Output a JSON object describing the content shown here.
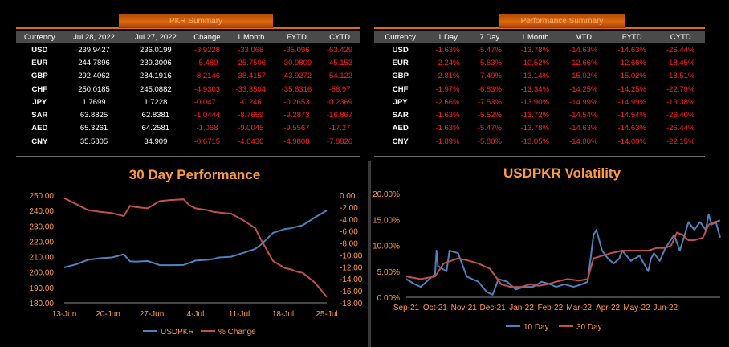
{
  "pkr_summary": {
    "title": "PKR Summary",
    "headers": [
      "Currency",
      "Jul 28, 2022",
      "Jul 27, 2022",
      "Change",
      "1 Month",
      "FYTD",
      "CYTD"
    ],
    "rows": [
      [
        "USD",
        "239.9427",
        "236.0199",
        "-3.9228",
        "-33.068",
        "-35.096",
        "-63.429"
      ],
      [
        "EUR",
        "244.7896",
        "239.3006",
        "-5.489",
        "-25.7506",
        "-30.9809",
        "-45.153"
      ],
      [
        "GBP",
        "292.4062",
        "284.1916",
        "-8.2146",
        "-38.4157",
        "-43.9272",
        "-54.122"
      ],
      [
        "CHF",
        "250.0185",
        "245.0882",
        "-4.9303",
        "-33.3504",
        "-35.6316",
        "-56.97"
      ],
      [
        "JPY",
        "1.7699",
        "1.7228",
        "-0.0471",
        "-0.246",
        "-0.2653",
        "-0.2369"
      ],
      [
        "SAR",
        "63.8825",
        "62.8381",
        "-1.0444",
        "-8.7659",
        "-9.2873",
        "-16.867"
      ],
      [
        "AED",
        "65.3261",
        "64.2581",
        "-1.068",
        "-9.0045",
        "-9.5567",
        "-17.27"
      ],
      [
        "CNY",
        "35.5805",
        "34.909",
        "-0.6715",
        "-4.6436",
        "-4.9808",
        "-7.8826"
      ]
    ]
  },
  "performance_summary": {
    "title": "Performance Summary",
    "headers": [
      "Currency",
      "1 Day",
      "7 Day",
      "1 Month",
      "MTD",
      "FYTD",
      "CYTD"
    ],
    "rows": [
      [
        "USD",
        "-1.63%",
        "-5.47%",
        "-13.78%",
        "-14.63%",
        "-14.63%",
        "-26.44%"
      ],
      [
        "EUR",
        "-2.24%",
        "-5.63%",
        "-10.52%",
        "-12.66%",
        "-12.66%",
        "-18.45%"
      ],
      [
        "GBP",
        "-2.81%",
        "-7.49%",
        "-13.14%",
        "-15.02%",
        "-15.02%",
        "-18.51%"
      ],
      [
        "CHF",
        "-1.97%",
        "-6.83%",
        "-13.34%",
        "-14.25%",
        "-14.25%",
        "-22.79%"
      ],
      [
        "JPY",
        "-2.66%",
        "-7.53%",
        "-13.90%",
        "-14.99%",
        "-14.99%",
        "-13.38%"
      ],
      [
        "SAR",
        "-1.63%",
        "-5.52%",
        "-13.72%",
        "-14.54%",
        "-14.54%",
        "-26.40%"
      ],
      [
        "AED",
        "-1.63%",
        "-5.47%",
        "-13.78%",
        "-14.63%",
        "-14.63%",
        "-26.44%"
      ],
      [
        "CNY",
        "-1.89%",
        "-5.80%",
        "-13.05%",
        "-14.00%",
        "-14.00%",
        "-22.15%"
      ]
    ]
  },
  "colors": {
    "accent": "#e06a10",
    "title_text": "#ff9944",
    "negative": "#ff2020",
    "series_blue": "#4f81bd",
    "series_red": "#c0504d"
  },
  "chart_data": [
    {
      "type": "line",
      "title": "30 Day Performance",
      "x_ticks": [
        "13-Jun",
        "20-Jun",
        "27-Jun",
        "4-Jul",
        "11-Jul",
        "18-Jul",
        "25-Jul"
      ],
      "ylim_left": [
        180,
        250
      ],
      "y_ticks_left": [
        "250.00",
        "240.00",
        "230.00",
        "220.00",
        "210.00",
        "200.00",
        "190.00",
        "180.00"
      ],
      "ylim_right": [
        -18,
        0
      ],
      "y_ticks_right": [
        "0.00",
        "-2.00",
        "-4.00",
        "-6.00",
        "-8.00",
        "-10.00",
        "-12.00",
        "-14.00",
        "-16.00",
        "-18.00"
      ],
      "x_range": [
        0,
        44
      ],
      "legend_position": "bottom",
      "series": [
        {
          "name": "USDPKR",
          "axis": "left",
          "x": [
            0,
            2,
            4,
            6,
            8,
            10,
            11,
            12,
            14,
            16,
            18,
            20,
            22,
            24,
            25,
            26,
            28,
            30,
            32,
            33,
            35,
            37,
            38,
            39,
            40,
            42,
            44
          ],
          "values": [
            203.0,
            205.0,
            208.0,
            209.0,
            209.5,
            211.5,
            207.0,
            206.8,
            207.2,
            204.5,
            204.5,
            204.6,
            207.5,
            208.0,
            208.5,
            209.5,
            210.0,
            212.5,
            215.0,
            218.0,
            225.5,
            228.0,
            228.5,
            229.5,
            230.5,
            235.5,
            240.0
          ]
        },
        {
          "name": "% Change",
          "axis": "right",
          "x": [
            0,
            2,
            4,
            6,
            8,
            10,
            11,
            12,
            14,
            16,
            18,
            20,
            21,
            22,
            24,
            25,
            26,
            28,
            30,
            32,
            33,
            35,
            37,
            38,
            39,
            40,
            42,
            44
          ],
          "values": [
            -0.5,
            -1.5,
            -2.5,
            -2.8,
            -3.0,
            -3.5,
            -1.8,
            -2.0,
            -2.2,
            -1.0,
            -0.8,
            -0.7,
            -1.7,
            -2.2,
            -2.5,
            -2.8,
            -2.9,
            -3.1,
            -4.2,
            -5.5,
            -7.5,
            -11.0,
            -12.2,
            -12.4,
            -12.8,
            -13.0,
            -14.6,
            -17.0
          ]
        }
      ]
    },
    {
      "type": "line",
      "title": "USDPKR Volatility",
      "x_ticks": [
        "Sep-21",
        "Oct-21",
        "Nov-21",
        "Dec-21",
        "Jan-22",
        "Feb-22",
        "Mar-22",
        "Apr-22",
        "May-22",
        "Jun-22"
      ],
      "x_range": [
        0,
        10.9
      ],
      "ylim": [
        0,
        0.2
      ],
      "y_ticks": [
        "0.00%",
        "5.00%",
        "10.00%",
        "15.00%",
        "20.00%"
      ],
      "legend_position": "bottom",
      "series": [
        {
          "name": "10 Day",
          "x": [
            0,
            0.3,
            0.5,
            0.7,
            1.0,
            1.05,
            1.1,
            1.4,
            1.5,
            1.8,
            2.1,
            2.5,
            2.8,
            3.0,
            3.2,
            3.5,
            3.8,
            4.1,
            4.4,
            4.7,
            5.0,
            5.2,
            5.5,
            5.8,
            6.1,
            6.3,
            6.5,
            6.6,
            6.8,
            7.0,
            7.2,
            7.4,
            7.5,
            7.8,
            8.1,
            8.4,
            8.5,
            8.6,
            8.8,
            9.0,
            9.3,
            9.5,
            9.8,
            10.0,
            10.2,
            10.4,
            10.5,
            10.6,
            10.75,
            10.9
          ],
          "values": [
            0.035,
            0.025,
            0.02,
            0.03,
            0.045,
            0.09,
            0.06,
            0.05,
            0.09,
            0.085,
            0.04,
            0.03,
            0.01,
            0.005,
            0.035,
            0.03,
            0.015,
            0.02,
            0.02,
            0.03,
            0.025,
            0.02,
            0.025,
            0.02,
            0.025,
            0.03,
            0.12,
            0.13,
            0.09,
            0.075,
            0.065,
            0.075,
            0.09,
            0.07,
            0.08,
            0.05,
            0.075,
            0.085,
            0.07,
            0.095,
            0.12,
            0.09,
            0.145,
            0.13,
            0.145,
            0.13,
            0.16,
            0.14,
            0.145,
            0.115
          ]
        },
        {
          "name": "30 Day",
          "x": [
            0,
            0.5,
            1.0,
            1.3,
            1.8,
            2.2,
            2.5,
            2.9,
            3.3,
            3.6,
            4.0,
            4.3,
            4.6,
            4.9,
            5.2,
            5.6,
            6.0,
            6.3,
            6.5,
            6.8,
            7.1,
            7.5,
            8.0,
            8.4,
            8.7,
            9.0,
            9.2,
            9.4,
            9.6,
            9.8,
            10.0,
            10.3,
            10.5,
            10.7,
            10.9
          ],
          "values": [
            0.04,
            0.035,
            0.04,
            0.065,
            0.075,
            0.07,
            0.065,
            0.055,
            0.025,
            0.02,
            0.02,
            0.025,
            0.022,
            0.025,
            0.03,
            0.035,
            0.032,
            0.035,
            0.075,
            0.08,
            0.085,
            0.09,
            0.09,
            0.09,
            0.095,
            0.095,
            0.1,
            0.125,
            0.12,
            0.11,
            0.11,
            0.115,
            0.14,
            0.145,
            0.148
          ]
        }
      ]
    }
  ]
}
